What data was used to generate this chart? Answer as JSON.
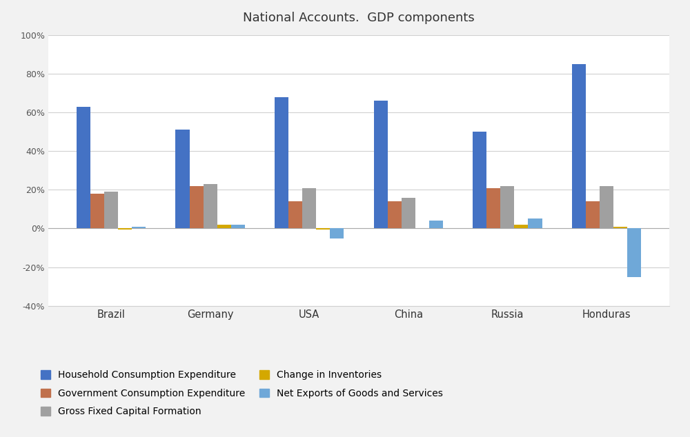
{
  "title": "National Accounts.  GDP components",
  "categories": [
    "Brazil",
    "Germany",
    "USA",
    "China",
    "Russia",
    "Honduras"
  ],
  "series": {
    "Household Consumption Expenditure": [
      63,
      51,
      68,
      66,
      50,
      85
    ],
    "Government Consumption Expenditure": [
      18,
      22,
      14,
      14,
      21,
      14
    ],
    "Gross Fixed Capital Formation": [
      19,
      23,
      21,
      16,
      22,
      22
    ],
    "Change in Inventories": [
      -0.5,
      2,
      -0.5,
      0,
      2,
      1
    ],
    "Net Exports of Goods and Services": [
      1,
      2,
      -5,
      4,
      5,
      -25
    ]
  },
  "colors": {
    "Household Consumption Expenditure": "#4472C4",
    "Government Consumption Expenditure": "#C0704C",
    "Gross Fixed Capital Formation": "#A0A0A0",
    "Change in Inventories": "#D4A800",
    "Net Exports of Goods and Services": "#6FA8D8"
  },
  "ylim": [
    -40,
    100
  ],
  "yticks": [
    -40,
    -20,
    0,
    20,
    40,
    60,
    80,
    100
  ],
  "background_color": "#FFFFFF",
  "outer_bg_color": "#F2F2F2",
  "grid_color": "#D0D0D0",
  "bar_width": 0.14,
  "legend_order": [
    [
      "Household Consumption Expenditure",
      "Government Consumption Expenditure"
    ],
    [
      "Gross Fixed Capital Formation",
      "Change in Inventories"
    ],
    [
      "Net Exports of Goods and Services"
    ]
  ]
}
